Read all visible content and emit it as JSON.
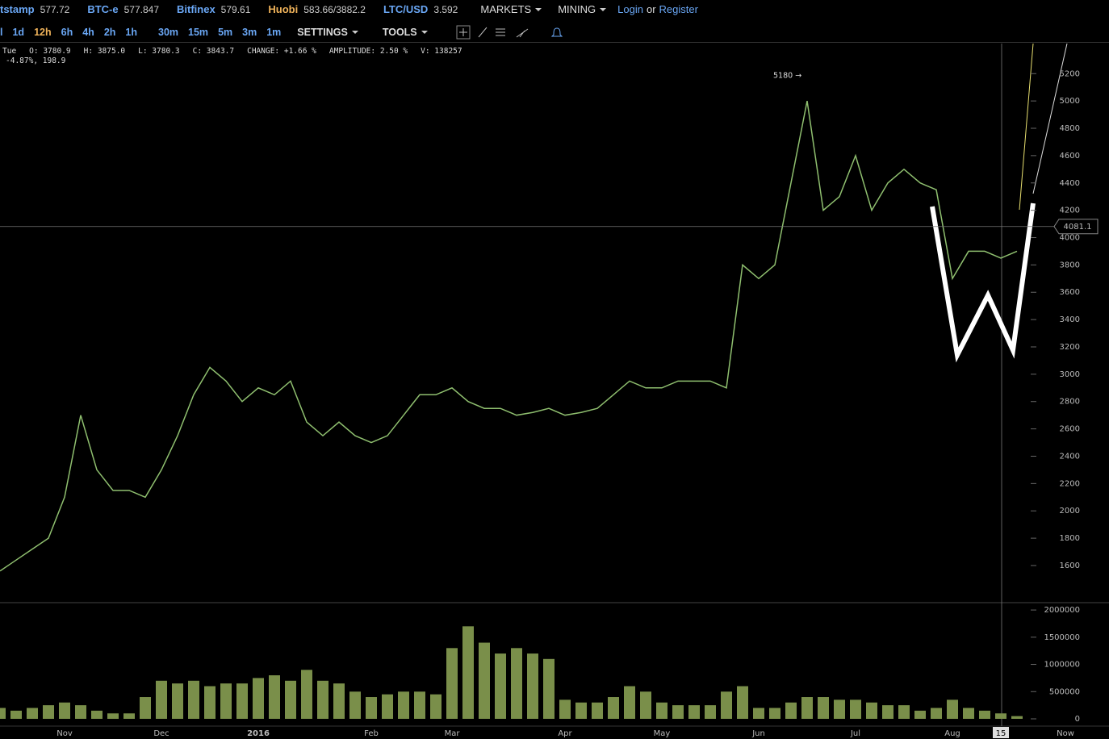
{
  "header": {
    "tickers": [
      {
        "name": "tstamp",
        "value": "577.72"
      },
      {
        "name": "BTC-e",
        "value": "577.847"
      },
      {
        "name": "Bitfinex",
        "value": "579.61"
      },
      {
        "name": "Huobi",
        "value": "583.66/3882.2"
      },
      {
        "name": "LTC/USD",
        "value": "3.592"
      }
    ],
    "menus": [
      "MARKETS",
      "MINING"
    ],
    "login": "Login",
    "or": "or",
    "register": "Register"
  },
  "toolbar": {
    "intervals": [
      "l",
      "1d",
      "12h",
      "6h",
      "4h",
      "2h",
      "1h",
      "30m",
      "15m",
      "5m",
      "3m",
      "1m"
    ],
    "settings": "SETTINGS",
    "tools": "TOOLS"
  },
  "info": {
    "line1": [
      "Tue",
      "O: 3780.9",
      "H: 3875.0",
      "L: 3780.3",
      "C: 3843.7",
      "CHANGE: +1.66 %",
      "AMPLITUDE: 2.50 %",
      "V: 138257"
    ],
    "line2": "-4.87%, 198.9"
  },
  "chart_data": [
    {
      "type": "line",
      "categories": [
        null,
        null,
        null,
        null,
        "Nov",
        null,
        null,
        null,
        null,
        null,
        "Dec",
        null,
        null,
        null,
        null,
        null,
        "2016",
        null,
        null,
        null,
        null,
        null,
        null,
        "Feb",
        null,
        null,
        null,
        null,
        "Mar",
        null,
        null,
        null,
        null,
        null,
        null,
        "Apr",
        null,
        null,
        null,
        null,
        null,
        "May",
        null,
        null,
        null,
        null,
        null,
        "Jun",
        null,
        null,
        null,
        null,
        null,
        "Jul",
        null,
        null,
        null,
        null,
        null,
        "Aug",
        null,
        null,
        "15",
        null,
        null,
        null,
        "Now"
      ],
      "series": [
        {
          "color": "#8fbf6f",
          "values": [
            1560,
            1640,
            1720,
            1800,
            2100,
            2700,
            2300,
            2150,
            2150,
            2100,
            2300,
            2550,
            2850,
            3050,
            2950,
            2800,
            2900,
            2850,
            2950,
            2650,
            2550,
            2650,
            2550,
            2500,
            2550,
            2700,
            2850,
            2850,
            2900,
            2800,
            2750,
            2750,
            2700,
            2720,
            2750,
            2700,
            2720,
            2750,
            2850,
            2950,
            2900,
            2900,
            2950,
            2950,
            2950,
            2900,
            3800,
            3700,
            3800,
            4400,
            5000,
            4200,
            4300,
            4600,
            4200,
            4400,
            4500,
            4400,
            4350,
            3700,
            3900,
            3900,
            3850,
            3900,
            null,
            null,
            null
          ]
        }
      ],
      "ylim": [
        1340,
        5420
      ],
      "yticks": [
        1600,
        1800,
        2000,
        2200,
        2400,
        2600,
        2800,
        3000,
        3200,
        3400,
        3600,
        3800,
        4000,
        4200,
        4400,
        4600,
        4800,
        5000,
        5200
      ],
      "annotations": [
        "5180 →"
      ],
      "crosshair": {
        "value": 4081.1,
        "label": "4081.1"
      }
    },
    {
      "type": "bar",
      "color": "#7a8f4a",
      "values": [
        200000,
        150000,
        200000,
        250000,
        300000,
        250000,
        150000,
        100000,
        100000,
        400000,
        700000,
        650000,
        700000,
        600000,
        650000,
        650000,
        750000,
        800000,
        700000,
        900000,
        700000,
        650000,
        500000,
        400000,
        450000,
        500000,
        500000,
        450000,
        1300000,
        1700000,
        1400000,
        1200000,
        1300000,
        1200000,
        1100000,
        350000,
        300000,
        300000,
        400000,
        600000,
        500000,
        300000,
        250000,
        250000,
        250000,
        500000,
        600000,
        200000,
        200000,
        300000,
        400000,
        400000,
        350000,
        350000,
        300000,
        250000,
        250000,
        150000,
        200000,
        350000,
        200000,
        150000,
        100000,
        50000,
        null,
        null,
        null
      ],
      "ylim": [
        0,
        2120000
      ],
      "yticks": [
        0,
        500000,
        1000000,
        1500000,
        2000000
      ]
    }
  ]
}
